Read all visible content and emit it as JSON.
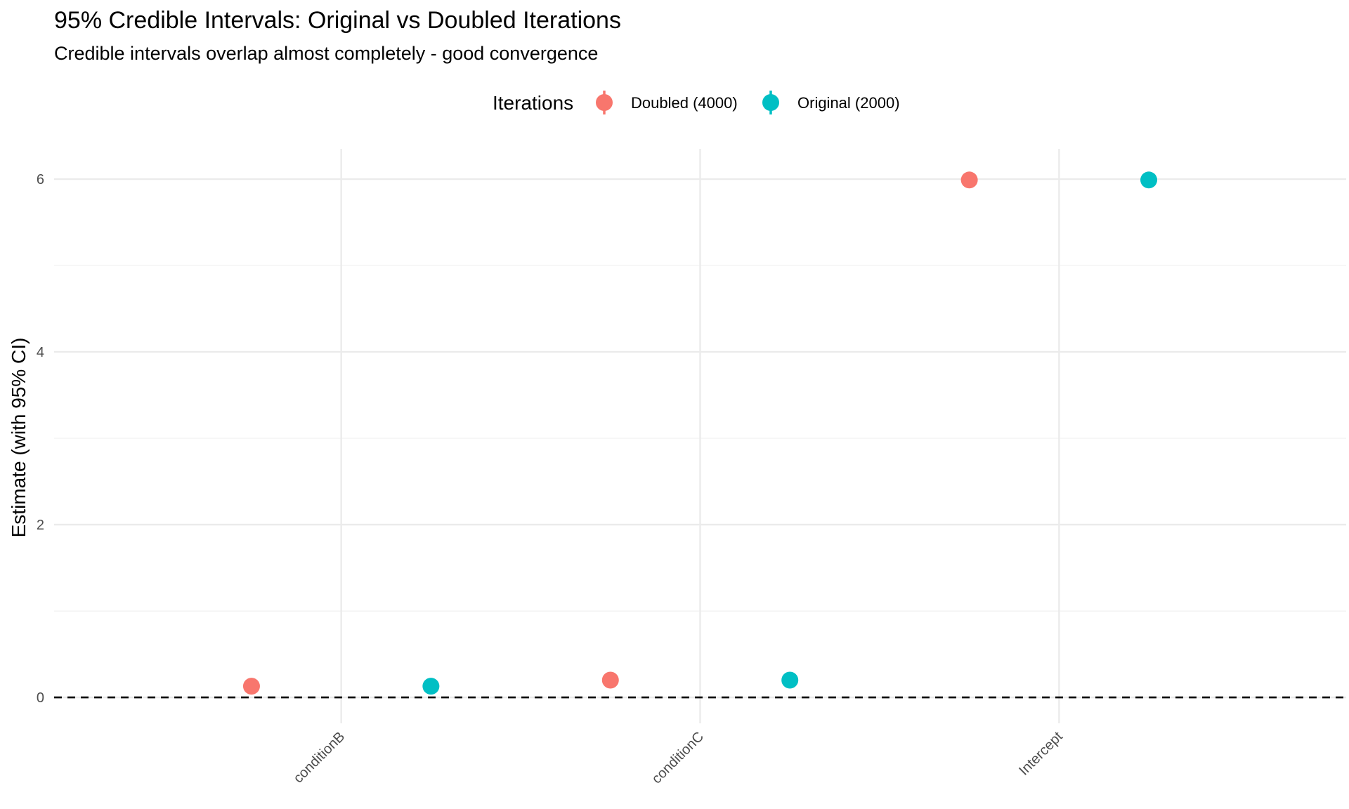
{
  "chart_data": {
    "type": "scatter",
    "title": "95% Credible Intervals: Original vs Doubled Iterations",
    "subtitle": "Credible intervals overlap almost completely - good convergence",
    "xlabel": "",
    "ylabel": "Estimate (with 95% CI)",
    "categories": [
      "conditionB",
      "conditionC",
      "Intercept"
    ],
    "ylim": [
      -0.3,
      6.35
    ],
    "yticks": [
      "0",
      "2",
      "4",
      "6"
    ],
    "grid": true,
    "reference_line": 0,
    "legend": {
      "title": "Iterations",
      "position": "top"
    },
    "series": [
      {
        "name": "Doubled (4000)",
        "color": "#F8766D",
        "values": [
          0.13,
          0.2,
          5.99
        ]
      },
      {
        "name": "Original (2000)",
        "color": "#00BFC4",
        "values": [
          0.13,
          0.2,
          5.99
        ]
      }
    ]
  }
}
